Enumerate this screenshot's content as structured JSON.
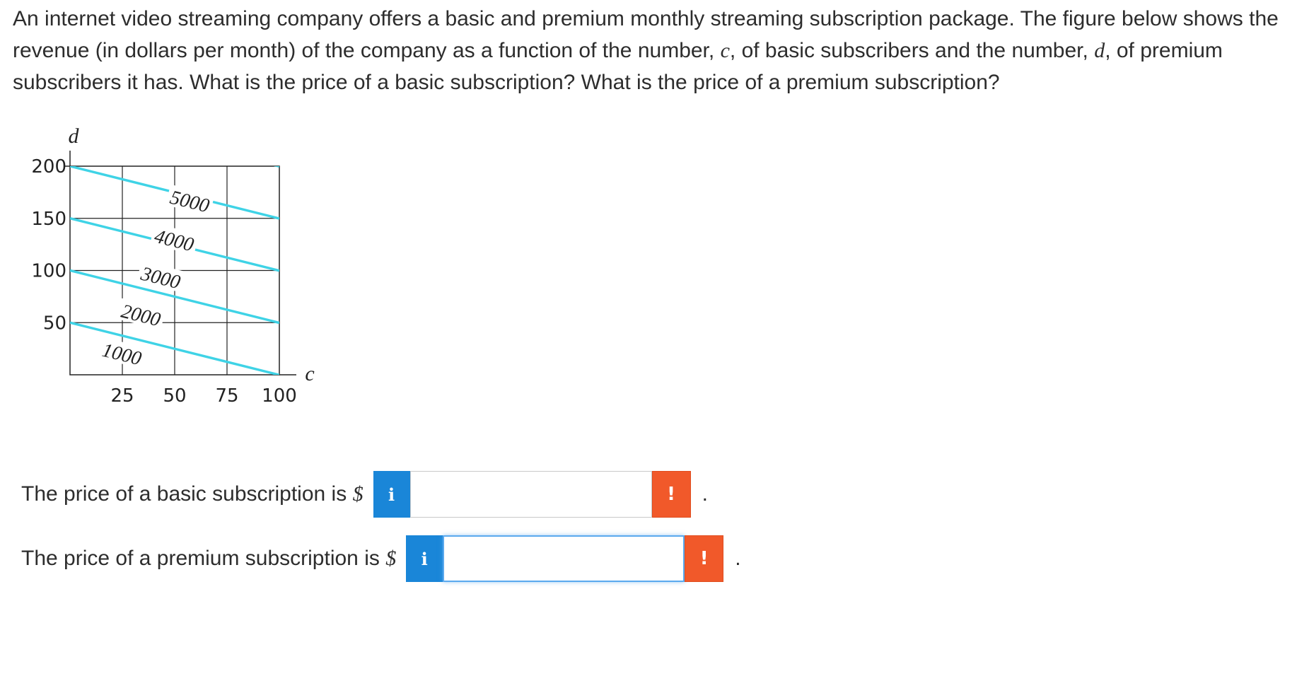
{
  "question": {
    "part1": "An internet video streaming company offers a basic and premium monthly streaming subscription package. The figure below shows the revenue (in dollars per month) of the company as a function of the number,",
    "var_c": "c",
    "part2": ", of basic subscribers and the number,",
    "var_d": "d",
    "part3": ", of premium subscribers it has. What is the price of a basic subscription? What is the price of a premium subscription?"
  },
  "chart_data": {
    "type": "contour",
    "xlabel": "c",
    "ylabel": "d",
    "x_ticks": [
      "25",
      "50",
      "75",
      "100"
    ],
    "y_ticks": [
      "200",
      "150",
      "100",
      "50"
    ],
    "xlim": [
      0,
      100
    ],
    "ylim": [
      0,
      200
    ],
    "grid": true,
    "line_color": "#3fd3e6",
    "contours": [
      {
        "label": "1000",
        "level": 1000
      },
      {
        "label": "2000",
        "level": 2000
      },
      {
        "label": "3000",
        "level": 3000
      },
      {
        "label": "4000",
        "level": 4000
      },
      {
        "label": "5000",
        "level": 5000
      }
    ]
  },
  "answers": {
    "basic": {
      "label": "The price of a basic subscription is",
      "currency": "$",
      "info_icon": "i",
      "warn_icon": "!",
      "value": "",
      "period": "."
    },
    "premium": {
      "label": "The price of a premium subscription is",
      "currency": "$",
      "info_icon": "i",
      "warn_icon": "!",
      "value": "",
      "period": "."
    }
  }
}
